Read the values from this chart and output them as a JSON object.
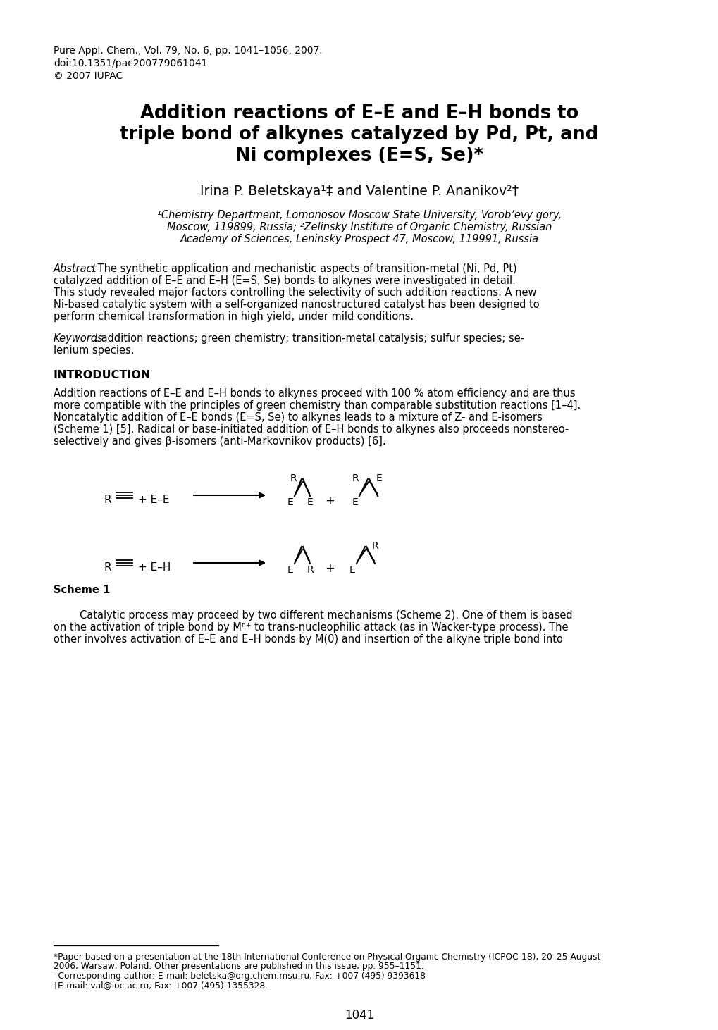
{
  "background_color": "#ffffff",
  "page_width": 10.2,
  "page_height": 14.62,
  "header_line1": "Pure Appl. Chem., Vol. 79, No. 6, pp. 1041–1056, 2007.",
  "header_line2": "doi:10.1351/pac200779061041",
  "header_line3": "© 2007 IUPAC",
  "title_lines": [
    "Addition reactions of E–E and E–H bonds to",
    "triple bond of alkynes catalyzed by Pd, Pt, and",
    "Ni complexes (E=S, Se)*"
  ],
  "author_line": "Irina P. Beletskaya¹‡ and Valentine P. Ananikov²†",
  "affil_lines": [
    "¹Chemistry Department, Lomonosov Moscow State University, Vorob’evy gory,",
    "Moscow, 119899, Russia; ²Zelinsky Institute of Organic Chemistry, Russian",
    "Academy of Sciences, Leninsky Prospect 47, Moscow, 119991, Russia"
  ],
  "abstract_label": "Abstract",
  "abstract_lines": [
    ": The synthetic application and mechanistic aspects of transition-metal (Ni, Pd, Pt)",
    "catalyzed addition of E–E and E–H (E=S, Se) bonds to alkynes were investigated in detail.",
    "This study revealed major factors controlling the selectivity of such addition reactions. A new",
    "Ni-based catalytic system with a self-organized nanostructured catalyst has been designed to",
    "perform chemical transformation in high yield, under mild conditions."
  ],
  "keywords_label": "Keywords",
  "keywords_lines": [
    ": addition reactions; green chemistry; transition-metal catalysis; sulfur species; se-",
    "lenium species."
  ],
  "intro_heading": "INTRODUCTION",
  "intro_lines": [
    "Addition reactions of E–E and E–H bonds to alkynes proceed with 100 % atom efficiency and are thus",
    "more compatible with the principles of green chemistry than comparable substitution reactions [1–4].",
    "Noncatalytic addition of E–E bonds (E=S, Se) to alkynes leads to a mixture of Z- and E-isomers",
    "(Scheme 1) [5]. Radical or base-initiated addition of E–H bonds to alkynes also proceeds nonstereo-",
    "selectively and gives β-isomers (anti-Markovnikov products) [6]."
  ],
  "scheme_label": "Scheme 1",
  "cat_lines": [
    "        Catalytic process may proceed by two different mechanisms (Scheme 2). One of them is based",
    "on the activation of triple bond by Mⁿ⁺ to trans-nucleophilic attack (as in Wacker-type process). The",
    "other involves activation of E–E and E–H bonds by M(0) and insertion of the alkyne triple bond into"
  ],
  "footnote_lines": [
    "*Paper based on a presentation at the 18th International Conference on Physical Organic Chemistry (ICPOC-18), 20–25 August",
    "2006, Warsaw, Poland. Other presentations are published in this issue, pp. 955–1151.",
    "⁻Corresponding author: E-mail: beletska@org.chem.msu.ru; Fax: +007 (495) 9393618",
    "†E-mail: val@ioc.ac.ru; Fax: +007 (495) 1355328."
  ],
  "page_number": "1041"
}
